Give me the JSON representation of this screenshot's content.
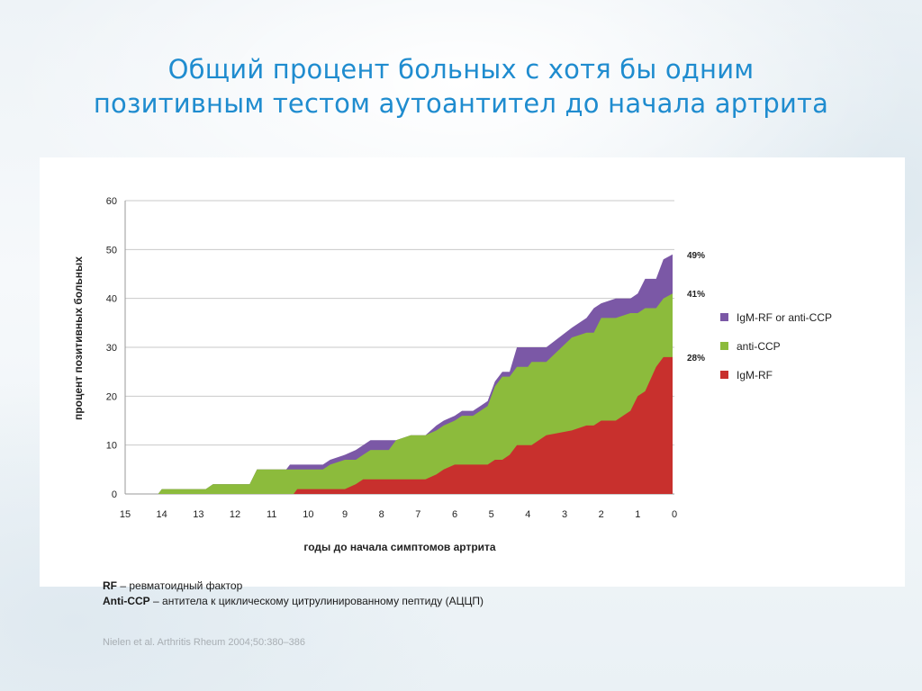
{
  "title_line1": "Общий процент больных с хотя бы одним",
  "title_line2": "позитивным тестом аутоантител до начала артрита",
  "notes": {
    "rf_abbr": "RF",
    "rf_text": " – ревматоидный  фактор",
    "ccp_abbr": "Anti-CCP",
    "ccp_text": " – антитела  к циклическому  цитрулинированному  пептиду (АЦЦП)"
  },
  "source": "Nielen et al. Arthritis Rheum 2004;50:380–386",
  "chart_data": {
    "type": "area",
    "title": "",
    "xlabel": "годы до начала симптомов артрита",
    "ylabel": "процент позитивных больных",
    "x_ticks": [
      15,
      14,
      13,
      12,
      11,
      10,
      9,
      8,
      7,
      6,
      5,
      4,
      3,
      2,
      1,
      0
    ],
    "y_ticks": [
      0,
      10,
      20,
      30,
      40,
      50,
      60
    ],
    "xlim": [
      15,
      0
    ],
    "ylim": [
      0,
      60
    ],
    "grid": true,
    "legend_position": "right",
    "end_labels": [
      "49%",
      "41%",
      "28%"
    ],
    "series": [
      {
        "name": "IgM-RF or anti-CCP",
        "color": "#7b58a6",
        "points": [
          [
            14.1,
            0
          ],
          [
            14,
            1
          ],
          [
            12.8,
            1
          ],
          [
            12.6,
            2
          ],
          [
            11.6,
            2
          ],
          [
            11.4,
            5
          ],
          [
            10.6,
            5
          ],
          [
            10.5,
            6
          ],
          [
            9.6,
            6
          ],
          [
            9.4,
            7
          ],
          [
            9.0,
            8
          ],
          [
            8.7,
            9
          ],
          [
            8.5,
            10
          ],
          [
            8.3,
            11
          ],
          [
            7.8,
            11
          ],
          [
            7.6,
            11
          ],
          [
            7.2,
            12
          ],
          [
            6.8,
            12
          ],
          [
            6.5,
            14
          ],
          [
            6.3,
            15
          ],
          [
            6.0,
            16
          ],
          [
            5.8,
            17
          ],
          [
            5.5,
            17
          ],
          [
            5.3,
            18
          ],
          [
            5.1,
            19
          ],
          [
            4.9,
            23
          ],
          [
            4.7,
            25
          ],
          [
            4.5,
            25
          ],
          [
            4.3,
            30
          ],
          [
            3.5,
            30
          ],
          [
            2.8,
            34
          ],
          [
            2.4,
            36
          ],
          [
            2.2,
            38
          ],
          [
            2.0,
            39
          ],
          [
            1.6,
            40
          ],
          [
            1.2,
            40
          ],
          [
            1.0,
            41
          ],
          [
            0.8,
            44
          ],
          [
            0.5,
            44
          ],
          [
            0.3,
            48
          ],
          [
            0.05,
            49
          ]
        ]
      },
      {
        "name": "anti-CCP",
        "color": "#8cbb3c",
        "points": [
          [
            14.1,
            0
          ],
          [
            14,
            1
          ],
          [
            12.8,
            1
          ],
          [
            12.6,
            2
          ],
          [
            11.6,
            2
          ],
          [
            11.4,
            5
          ],
          [
            10.6,
            5
          ],
          [
            10.5,
            5
          ],
          [
            9.6,
            5
          ],
          [
            9.4,
            6
          ],
          [
            9.0,
            7
          ],
          [
            8.7,
            7
          ],
          [
            8.5,
            8
          ],
          [
            8.3,
            9
          ],
          [
            7.8,
            9
          ],
          [
            7.6,
            11
          ],
          [
            7.2,
            12
          ],
          [
            6.8,
            12
          ],
          [
            6.5,
            13
          ],
          [
            6.3,
            14
          ],
          [
            6.0,
            15
          ],
          [
            5.8,
            16
          ],
          [
            5.5,
            16
          ],
          [
            5.3,
            17
          ],
          [
            5.1,
            18
          ],
          [
            4.9,
            22
          ],
          [
            4.7,
            24
          ],
          [
            4.5,
            24
          ],
          [
            4.3,
            26
          ],
          [
            4.0,
            26
          ],
          [
            3.9,
            27
          ],
          [
            3.5,
            27
          ],
          [
            2.8,
            32
          ],
          [
            2.4,
            33
          ],
          [
            2.2,
            33
          ],
          [
            2.0,
            36
          ],
          [
            1.6,
            36
          ],
          [
            1.2,
            37
          ],
          [
            1.0,
            37
          ],
          [
            0.8,
            38
          ],
          [
            0.5,
            38
          ],
          [
            0.3,
            40
          ],
          [
            0.05,
            41
          ]
        ]
      },
      {
        "name": "IgM-RF",
        "color": "#c8302d",
        "points": [
          [
            10.4,
            0
          ],
          [
            10.3,
            1
          ],
          [
            9.6,
            1
          ],
          [
            9.4,
            1
          ],
          [
            9.0,
            1
          ],
          [
            8.7,
            2
          ],
          [
            8.5,
            3
          ],
          [
            8.3,
            3
          ],
          [
            7.8,
            3
          ],
          [
            7.6,
            3
          ],
          [
            7.2,
            3
          ],
          [
            6.8,
            3
          ],
          [
            6.5,
            4
          ],
          [
            6.3,
            5
          ],
          [
            6.0,
            6
          ],
          [
            5.8,
            6
          ],
          [
            5.5,
            6
          ],
          [
            5.3,
            6
          ],
          [
            5.1,
            6
          ],
          [
            4.9,
            7
          ],
          [
            4.7,
            7
          ],
          [
            4.5,
            8
          ],
          [
            4.3,
            10
          ],
          [
            4.0,
            10
          ],
          [
            3.9,
            10
          ],
          [
            3.5,
            12
          ],
          [
            2.8,
            13
          ],
          [
            2.4,
            14
          ],
          [
            2.2,
            14
          ],
          [
            2.0,
            15
          ],
          [
            1.6,
            15
          ],
          [
            1.2,
            17
          ],
          [
            1.0,
            20
          ],
          [
            0.8,
            21
          ],
          [
            0.5,
            26
          ],
          [
            0.3,
            28
          ],
          [
            0.05,
            28
          ]
        ]
      }
    ]
  }
}
